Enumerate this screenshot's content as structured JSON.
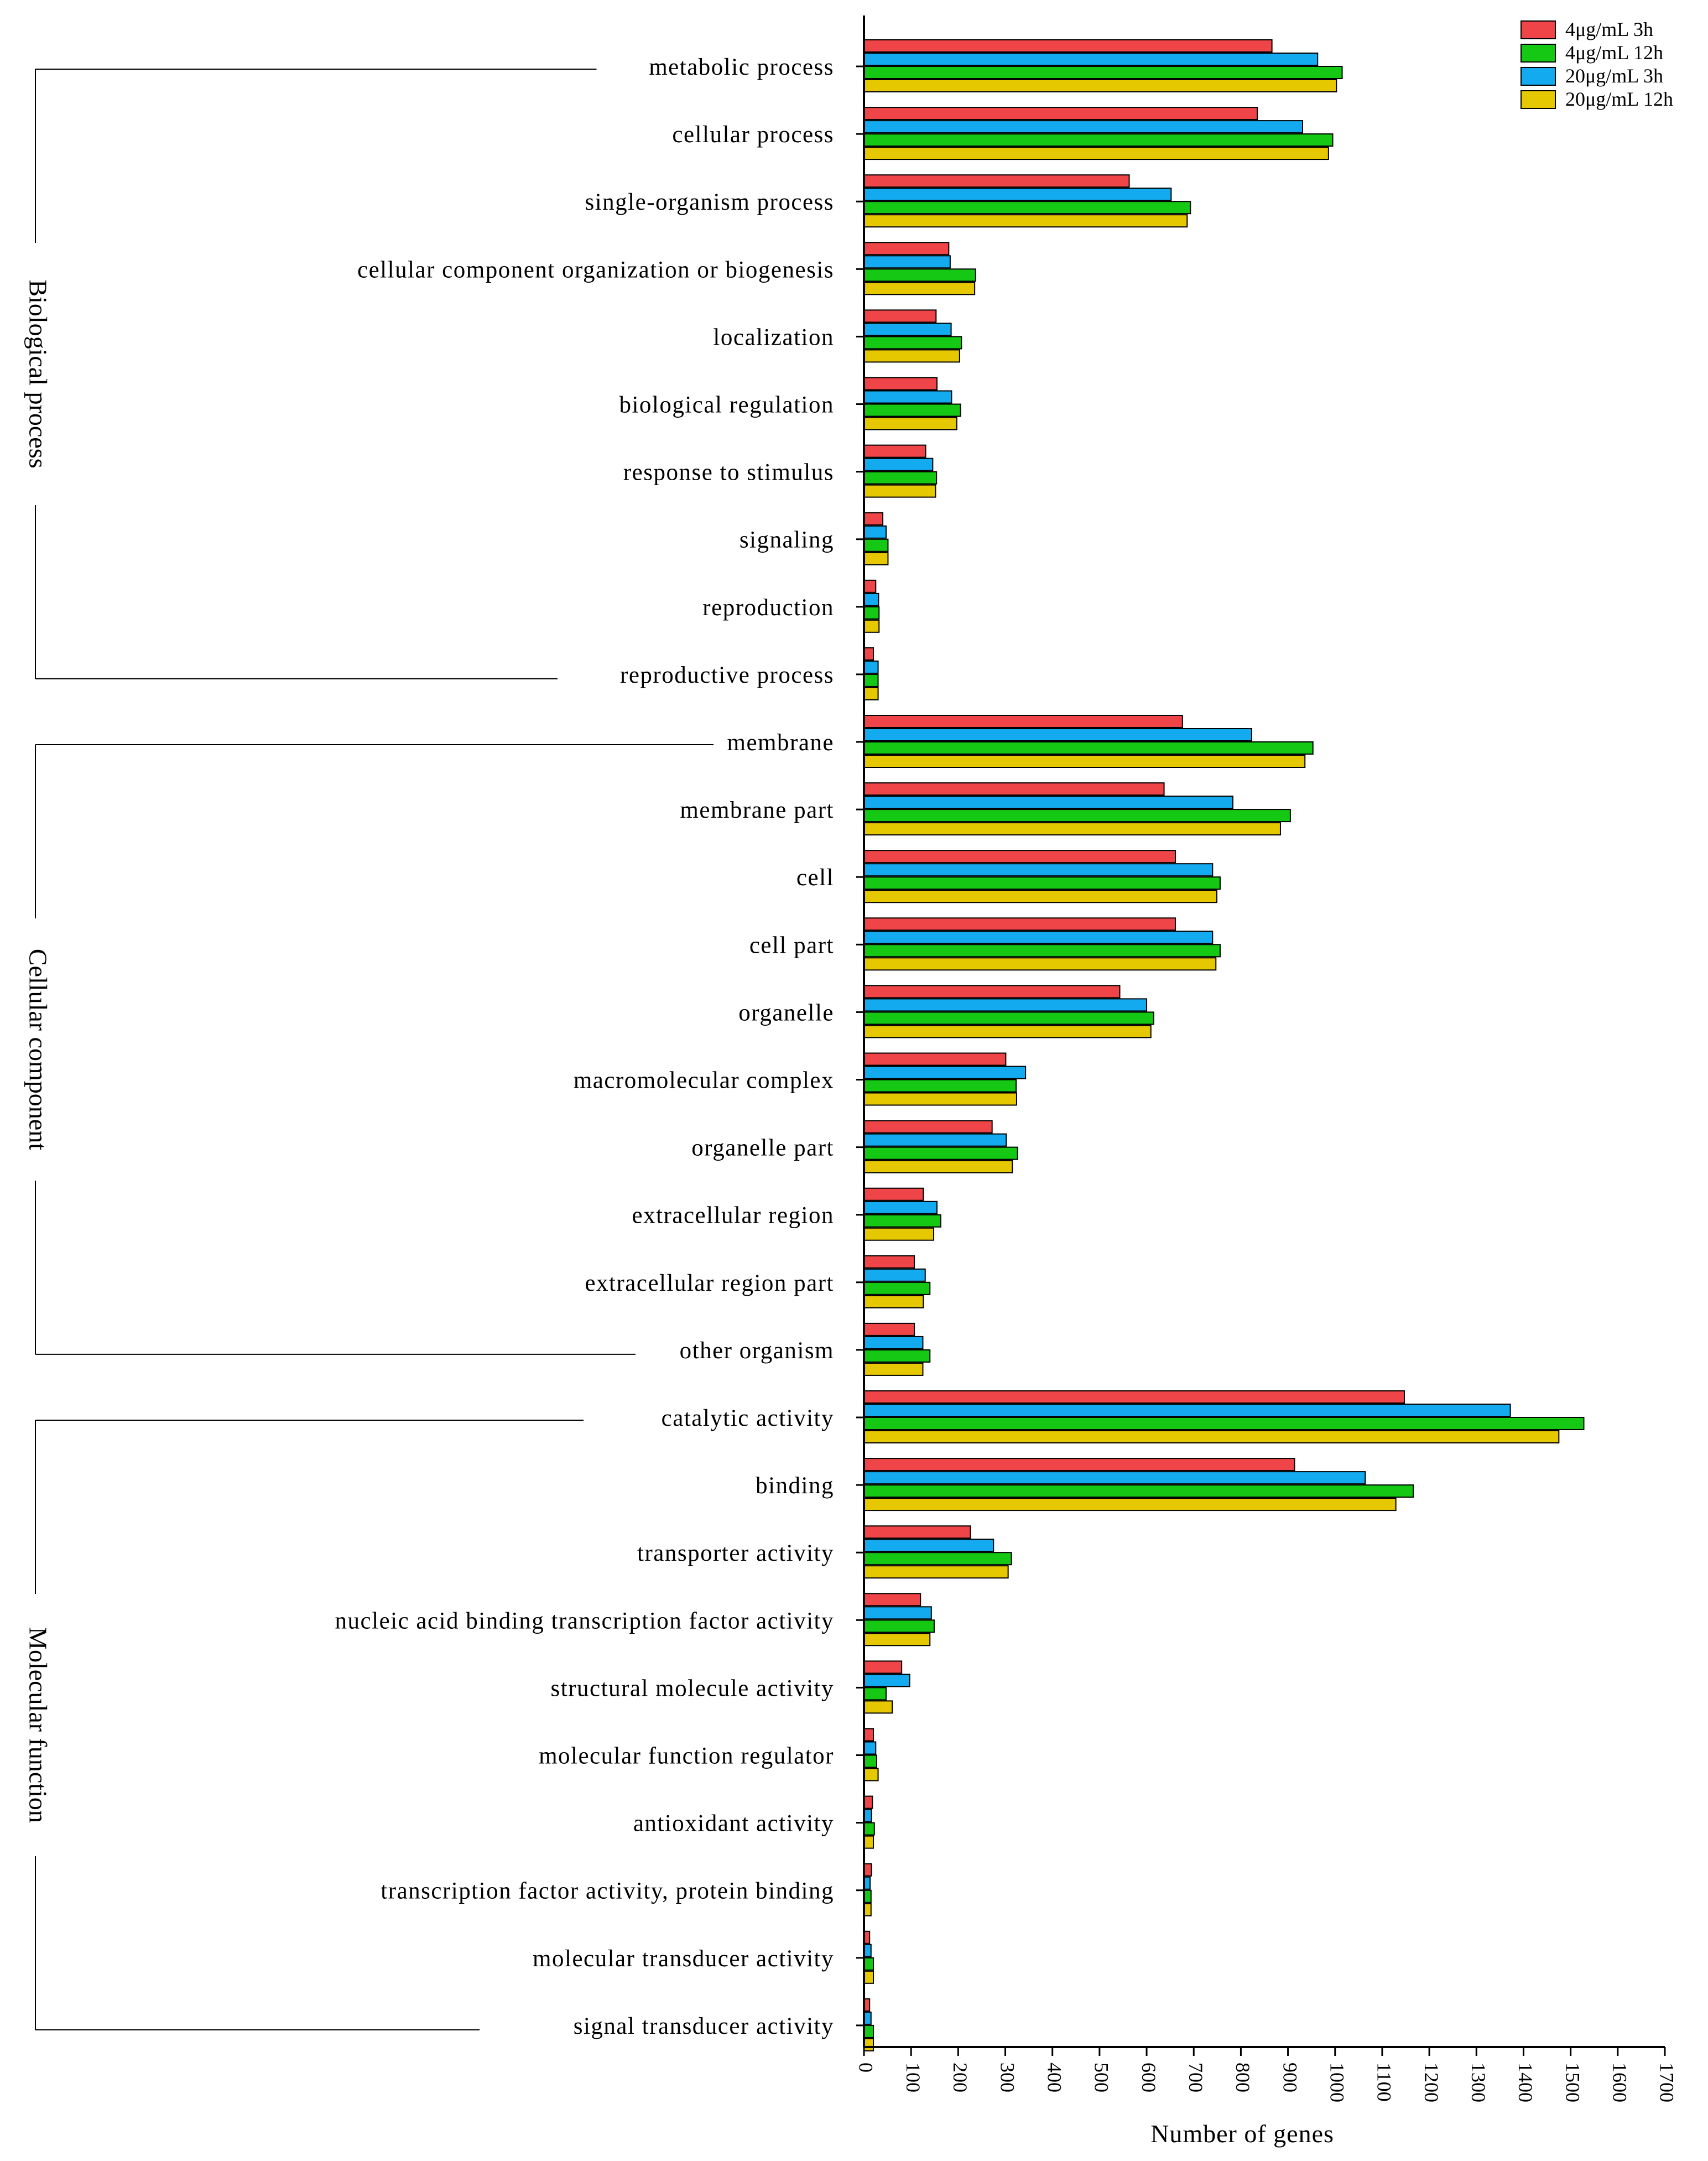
{
  "chart_data": {
    "type": "bar",
    "orientation": "horizontal",
    "xlabel": "Number of genes",
    "xlim": [
      0,
      1700
    ],
    "xticks": [
      0,
      100,
      200,
      300,
      400,
      500,
      600,
      700,
      800,
      900,
      1000,
      1100,
      1200,
      1300,
      1400,
      1500,
      1600,
      1700
    ],
    "legend_position": "top-right",
    "series": [
      {
        "name": "4μg/mL 3h",
        "color": "#f04548"
      },
      {
        "name": "4μg/mL 12h",
        "color": "#14c814"
      },
      {
        "name": "20μg/mL 3h",
        "color": "#14aaf0"
      },
      {
        "name": "20μg/mL 12h",
        "color": "#e6c800"
      }
    ],
    "bar_order": [
      "4μg/mL 3h",
      "20μg/mL 3h",
      "4μg/mL 12h",
      "20μg/mL 12h"
    ],
    "groups": [
      {
        "name": "Biological process",
        "categories": [
          {
            "label": "metabolic process",
            "values": [
              866,
              1015,
              963,
              1003
            ]
          },
          {
            "label": "cellular process",
            "values": [
              835,
              995,
              931,
              986
            ]
          },
          {
            "label": "single-organism process",
            "values": [
              563,
              693,
              652,
              686
            ]
          },
          {
            "label": "cellular component organization or biogenesis",
            "values": [
              180,
              237,
              183,
              235
            ]
          },
          {
            "label": "localization",
            "values": [
              153,
              207,
              185,
              203
            ]
          },
          {
            "label": "biological regulation",
            "values": [
              155,
              205,
              186,
              197
            ]
          },
          {
            "label": "response to stimulus",
            "values": [
              131,
              154,
              146,
              152
            ]
          },
          {
            "label": "signaling",
            "values": [
              40,
              51,
              47,
              51
            ]
          },
          {
            "label": "reproduction",
            "values": [
              25,
              32,
              31,
              32
            ]
          },
          {
            "label": "reproductive process",
            "values": [
              20,
              30,
              30,
              30
            ]
          }
        ]
      },
      {
        "name": "Cellular component",
        "categories": [
          {
            "label": "membrane",
            "values": [
              676,
              953,
              823,
              936
            ]
          },
          {
            "label": "membrane part",
            "values": [
              637,
              905,
              783,
              884
            ]
          },
          {
            "label": "cell",
            "values": [
              661,
              756,
              740,
              749
            ]
          },
          {
            "label": "cell part",
            "values": [
              661,
              756,
              740,
              747
            ]
          },
          {
            "label": "organelle",
            "values": [
              543,
              615,
              600,
              609
            ]
          },
          {
            "label": "macromolecular complex",
            "values": [
              301,
              323,
              343,
              324
            ]
          },
          {
            "label": "organelle part",
            "values": [
              272,
              326,
              302,
              315
            ]
          },
          {
            "label": "extracellular region",
            "values": [
              126,
              163,
              155,
              148
            ]
          },
          {
            "label": "extracellular region part",
            "values": [
              107,
              140,
              130,
              126
            ]
          },
          {
            "label": "other organism",
            "values": [
              107,
              140,
              125,
              125
            ]
          }
        ]
      },
      {
        "name": "Molecular function",
        "categories": [
          {
            "label": "catalytic activity",
            "values": [
              1147,
              1528,
              1372,
              1475
            ]
          },
          {
            "label": "binding",
            "values": [
              914,
              1166,
              1064,
              1129
            ]
          },
          {
            "label": "transporter activity",
            "values": [
              226,
              313,
              275,
              306
            ]
          },
          {
            "label": "nucleic acid binding transcription factor activity",
            "values": [
              120,
              149,
              143,
              140
            ]
          },
          {
            "label": "structural molecule activity",
            "values": [
              80,
              47,
              97,
              60
            ]
          },
          {
            "label": "molecular function regulator",
            "values": [
              20,
              27,
              25,
              30
            ]
          },
          {
            "label": "antioxidant activity",
            "values": [
              18,
              22,
              16,
              20
            ]
          },
          {
            "label": "transcription factor activity, protein binding",
            "values": [
              16,
              15,
              13,
              15
            ]
          },
          {
            "label": "molecular transducer activity",
            "values": [
              12,
              20,
              15,
              20
            ]
          },
          {
            "label": "signal transducer activity",
            "values": [
              12,
              20,
              15,
              20
            ]
          }
        ]
      }
    ]
  }
}
